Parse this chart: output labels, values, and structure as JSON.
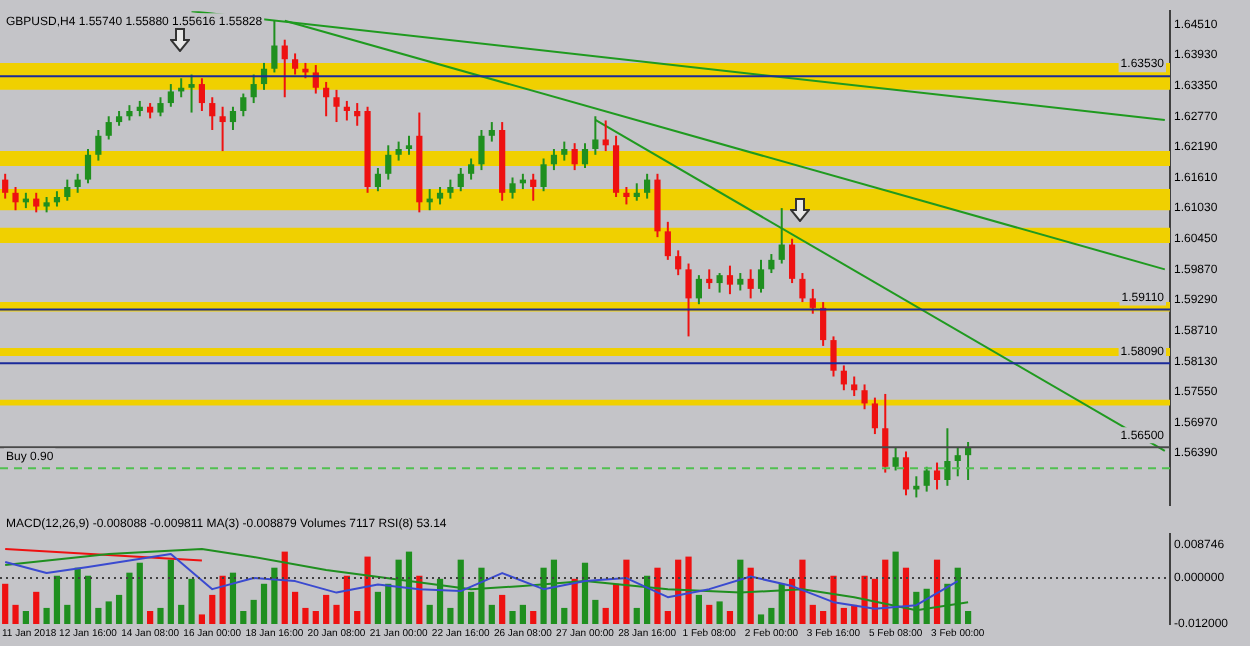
{
  "chart_data": [
    {
      "type": "candlestick",
      "title": "GBPUSD,H4 1.55740 1.55880 1.55616 1.55828",
      "tick_labels": "y",
      "categories": [
        null,
        null,
        null,
        null,
        null,
        null,
        null,
        null,
        null,
        null,
        null,
        null,
        null,
        null,
        null,
        null,
        null,
        null,
        null,
        null,
        null,
        null,
        null,
        null,
        null,
        null,
        null,
        null,
        null,
        null,
        null,
        null,
        null,
        null,
        null,
        null,
        null,
        null,
        null,
        null,
        null,
        null,
        null,
        null,
        null,
        null,
        null,
        null,
        null,
        null,
        null,
        null,
        null,
        null,
        null,
        null,
        null,
        null,
        null,
        null,
        null,
        null,
        null,
        null,
        null,
        null,
        null,
        null,
        null,
        null,
        null,
        null,
        null,
        null,
        null,
        null,
        null,
        null,
        null,
        null,
        null,
        null,
        null,
        null,
        null,
        null,
        null,
        null,
        null,
        null,
        null,
        null,
        null,
        null,
        null,
        null,
        null,
        null,
        null,
        null,
        null,
        null,
        null,
        null,
        null,
        null,
        null,
        null,
        null,
        null,
        null,
        null,
        null
      ],
      "ohlc": [
        [
          1.6157,
          1.6168,
          1.6121,
          1.6132
        ],
        [
          1.6132,
          1.6143,
          1.6099,
          1.6114
        ],
        [
          1.6114,
          1.6132,
          1.6103,
          1.6121
        ],
        [
          1.6121,
          1.6132,
          1.6095,
          1.6106
        ],
        [
          1.6106,
          1.6124,
          1.6095,
          1.6114
        ],
        [
          1.6114,
          1.6135,
          1.6106,
          1.6124
        ],
        [
          1.6124,
          1.6157,
          1.6117,
          1.6143
        ],
        [
          1.6143,
          1.6168,
          1.6132,
          1.6157
        ],
        [
          1.6157,
          1.6215,
          1.615,
          1.6204
        ],
        [
          1.6204,
          1.6251,
          1.6193,
          1.624
        ],
        [
          1.624,
          1.6277,
          1.6233,
          1.6266
        ],
        [
          1.6266,
          1.6287,
          1.6259,
          1.6277
        ],
        [
          1.6277,
          1.6298,
          1.6269,
          1.6287
        ],
        [
          1.6287,
          1.6306,
          1.6277,
          1.6295
        ],
        [
          1.6295,
          1.6302,
          1.6273,
          1.6284
        ],
        [
          1.6284,
          1.6313,
          1.6277,
          1.6302
        ],
        [
          1.6302,
          1.6338,
          1.6295,
          1.6324
        ],
        [
          1.6324,
          1.6349,
          1.6313,
          1.6331
        ],
        [
          1.6331,
          1.6356,
          1.6284,
          1.6338
        ],
        [
          1.6338,
          1.6349,
          1.6287,
          1.6302
        ],
        [
          1.6302,
          1.6313,
          1.6251,
          1.6277
        ],
        [
          1.6277,
          1.6295,
          1.6211,
          1.6266
        ],
        [
          1.6266,
          1.6295,
          1.6251,
          1.6287
        ],
        [
          1.6287,
          1.632,
          1.6277,
          1.6313
        ],
        [
          1.6313,
          1.6356,
          1.6302,
          1.6338
        ],
        [
          1.6338,
          1.6378,
          1.6327,
          1.6367
        ],
        [
          1.6367,
          1.6458,
          1.636,
          1.6411
        ],
        [
          1.6411,
          1.6422,
          1.6313,
          1.6385
        ],
        [
          1.6385,
          1.6396,
          1.6356,
          1.6367
        ],
        [
          1.6367,
          1.6378,
          1.6349,
          1.636
        ],
        [
          1.636,
          1.6374,
          1.632,
          1.6331
        ],
        [
          1.6331,
          1.6342,
          1.6277,
          1.6313
        ],
        [
          1.6313,
          1.6327,
          1.6266,
          1.6295
        ],
        [
          1.6295,
          1.6306,
          1.6269,
          1.6287
        ],
        [
          1.6287,
          1.6302,
          1.6259,
          1.6277
        ],
        [
          1.6287,
          1.6295,
          1.6132,
          1.6143
        ],
        [
          1.6143,
          1.6179,
          1.6135,
          1.6168
        ],
        [
          1.6168,
          1.6222,
          1.6157,
          1.6204
        ],
        [
          1.6204,
          1.6229,
          1.6193,
          1.6215
        ],
        [
          1.6215,
          1.624,
          1.6204,
          1.6222
        ],
        [
          1.624,
          1.6284,
          1.6095,
          1.6114
        ],
        [
          1.6114,
          1.6139,
          1.6099,
          1.6121
        ],
        [
          1.6121,
          1.6143,
          1.611,
          1.6132
        ],
        [
          1.6132,
          1.6157,
          1.6121,
          1.6143
        ],
        [
          1.6143,
          1.6179,
          1.6135,
          1.6168
        ],
        [
          1.6168,
          1.6197,
          1.6157,
          1.6186
        ],
        [
          1.6186,
          1.6251,
          1.6175,
          1.624
        ],
        [
          1.624,
          1.6266,
          1.6229,
          1.6251
        ],
        [
          1.6251,
          1.6266,
          1.6117,
          1.6132
        ],
        [
          1.6132,
          1.6161,
          1.6121,
          1.615
        ],
        [
          1.615,
          1.6168,
          1.6139,
          1.6157
        ],
        [
          1.6157,
          1.6168,
          1.6117,
          1.6143
        ],
        [
          1.6143,
          1.6197,
          1.6135,
          1.6186
        ],
        [
          1.6186,
          1.6215,
          1.6175,
          1.6204
        ],
        [
          1.6204,
          1.6229,
          1.6193,
          1.6215
        ],
        [
          1.6215,
          1.6226,
          1.6175,
          1.6186
        ],
        [
          1.6186,
          1.6226,
          1.6179,
          1.6215
        ],
        [
          1.6215,
          1.6277,
          1.6204,
          1.6233
        ],
        [
          1.6233,
          1.6269,
          1.6211,
          1.6222
        ],
        [
          1.6222,
          1.624,
          1.6124,
          1.6132
        ],
        [
          1.6132,
          1.6143,
          1.611,
          1.6124
        ],
        [
          1.6124,
          1.615,
          1.6117,
          1.6132
        ],
        [
          1.6132,
          1.6168,
          1.6121,
          1.6157
        ],
        [
          1.6157,
          1.6168,
          1.6048,
          1.6059
        ],
        [
          1.6059,
          1.6077,
          1.6005,
          1.6012
        ],
        [
          1.6012,
          1.6023,
          1.5976,
          1.5987
        ],
        [
          1.5987,
          1.5998,
          1.586,
          1.5932
        ],
        [
          1.5932,
          1.5976,
          1.5921,
          1.5969
        ],
        [
          1.5969,
          1.5987,
          1.595,
          1.5961
        ],
        [
          1.5961,
          1.598,
          1.5943,
          1.5976
        ],
        [
          1.5976,
          1.5994,
          1.594,
          1.5958
        ],
        [
          1.5958,
          1.598,
          1.5947,
          1.5969
        ],
        [
          1.5969,
          1.5987,
          1.5932,
          1.595
        ],
        [
          1.595,
          1.6005,
          1.5943,
          1.5987
        ],
        [
          1.5987,
          1.6016,
          1.598,
          1.6005
        ],
        [
          1.6005,
          1.6103,
          1.5998,
          1.6034
        ],
        [
          1.6034,
          1.6045,
          1.5961,
          1.5969
        ],
        [
          1.5969,
          1.598,
          1.5925,
          1.5932
        ],
        [
          1.5932,
          1.595,
          1.5903,
          1.5914
        ],
        [
          1.5914,
          1.5925,
          1.5842,
          1.5853
        ],
        [
          1.5853,
          1.586,
          1.5784,
          1.5795
        ],
        [
          1.5795,
          1.5805,
          1.5758,
          1.5769
        ],
        [
          1.5769,
          1.5784,
          1.5747,
          1.5758
        ],
        [
          1.5758,
          1.5769,
          1.5722,
          1.5733
        ],
        [
          1.5733,
          1.5744,
          1.5675,
          1.5686
        ],
        [
          1.5686,
          1.5751,
          1.5602,
          1.5613
        ],
        [
          1.5613,
          1.565,
          1.5606,
          1.5631
        ],
        [
          1.5631,
          1.5642,
          1.5559,
          1.557
        ],
        [
          1.557,
          1.5595,
          1.5555,
          1.5577
        ],
        [
          1.5577,
          1.5613,
          1.5566,
          1.5606
        ],
        [
          1.5606,
          1.5621,
          1.557,
          1.5588
        ],
        [
          1.5588,
          1.5686,
          1.5577,
          1.5624
        ],
        [
          1.5624,
          1.565,
          1.5595,
          1.5635
        ],
        [
          1.5635,
          1.566,
          1.5588,
          1.565
        ],
        null,
        null,
        null,
        null,
        null,
        null,
        null,
        null,
        null,
        null,
        null,
        null,
        null,
        null,
        null,
        null,
        null,
        null,
        null
      ],
      "colors": [
        "#ee1111",
        "#ee1111",
        "#1f8f1f",
        "#ee1111",
        "#1f8f1f",
        "#1f8f1f",
        "#1f8f1f",
        "#1f8f1f",
        "#1f8f1f",
        "#1f8f1f",
        "#1f8f1f",
        "#1f8f1f",
        "#1f8f1f",
        "#1f8f1f",
        "#ee1111",
        "#1f8f1f",
        "#1f8f1f",
        "#1f8f1f",
        "#1f8f1f",
        "#ee1111",
        "#ee1111",
        "#ee1111",
        "#1f8f1f",
        "#1f8f1f",
        "#1f8f1f",
        "#1f8f1f",
        "#1f8f1f",
        "#ee1111",
        "#ee1111",
        "#ee1111",
        "#ee1111",
        "#ee1111",
        "#ee1111",
        "#ee1111",
        "#ee1111",
        "#ee1111",
        "#1f8f1f",
        "#1f8f1f",
        "#1f8f1f",
        "#1f8f1f",
        "#ee1111",
        "#1f8f1f",
        "#1f8f1f",
        "#1f8f1f",
        "#1f8f1f",
        "#1f8f1f",
        "#1f8f1f",
        "#1f8f1f",
        "#ee1111",
        "#1f8f1f",
        "#1f8f1f",
        "#ee1111",
        "#1f8f1f",
        "#1f8f1f",
        "#1f8f1f",
        "#ee1111",
        "#1f8f1f",
        "#1f8f1f",
        "#ee1111",
        "#ee1111",
        "#ee1111",
        "#1f8f1f",
        "#1f8f1f",
        "#ee1111",
        "#ee1111",
        "#ee1111",
        "#ee1111",
        "#1f8f1f",
        "#ee1111",
        "#1f8f1f",
        "#ee1111",
        "#1f8f1f",
        "#ee1111",
        "#1f8f1f",
        "#1f8f1f",
        "#1f8f1f",
        "#ee1111",
        "#ee1111",
        "#ee1111",
        "#ee1111",
        "#ee1111",
        "#ee1111",
        "#ee1111",
        "#ee1111",
        "#ee1111",
        "#ee1111",
        "#1f8f1f",
        "#ee1111",
        "#1f8f1f",
        "#1f8f1f",
        "#ee1111",
        "#1f8f1f",
        "#1f8f1f",
        "#1f8f1f",
        null,
        null,
        null,
        null,
        null,
        null,
        null,
        null,
        null,
        null,
        null,
        null,
        null,
        null,
        null,
        null,
        null,
        null,
        null
      ],
      "ylim": [
        1.5541,
        1.6476
      ],
      "yticks": [
        {
          "value": 1.6451,
          "label": "1.64510"
        },
        {
          "value": 1.6393,
          "label": "1.63930"
        },
        {
          "value": 1.6335,
          "label": "1.63350"
        },
        {
          "value": 1.6277,
          "label": "1.62770"
        },
        {
          "value": 1.6219,
          "label": "1.62190"
        },
        {
          "value": 1.6161,
          "label": "1.61610"
        },
        {
          "value": 1.6103,
          "label": "1.61030"
        },
        {
          "value": 1.6045,
          "label": "1.60450"
        },
        {
          "value": 1.5987,
          "label": "1.59870"
        },
        {
          "value": 1.5929,
          "label": "1.59290"
        },
        {
          "value": 1.5871,
          "label": "1.58710"
        },
        {
          "value": 1.5813,
          "label": "1.58130"
        },
        {
          "value": 1.5755,
          "label": "1.57550"
        },
        {
          "value": 1.5697,
          "label": "1.56970"
        },
        {
          "value": 1.5639,
          "label": "1.56390"
        }
      ],
      "bands": [
        {
          "axis": "y",
          "from": 1.6327,
          "to": 1.6378,
          "color": "#f0d000"
        },
        {
          "axis": "y",
          "from": 1.6183,
          "to": 1.6211,
          "color": "#f0d000"
        },
        {
          "axis": "y",
          "from": 1.6099,
          "to": 1.6139,
          "color": "#f0d000"
        },
        {
          "axis": "y",
          "from": 1.6037,
          "to": 1.6066,
          "color": "#f0d000"
        },
        {
          "axis": "y",
          "from": 1.5907,
          "to": 1.5925,
          "color": "#f0d000"
        },
        {
          "axis": "y",
          "from": 1.5823,
          "to": 1.5838,
          "color": "#f0d000"
        },
        {
          "axis": "y",
          "from": 1.5729,
          "to": 1.574,
          "color": "#f0d000"
        }
      ],
      "ref_lines": [
        {
          "axis": "y",
          "value": 1.6353,
          "label": "1.63530",
          "color": "#1a2a9a"
        },
        {
          "axis": "y",
          "value": 1.5911,
          "label": "1.59110",
          "color": "#1a2a9a"
        },
        {
          "axis": "y",
          "value": 1.5809,
          "label": "1.58090",
          "color": "#1a2a9a"
        },
        {
          "axis": "y",
          "value": 1.565,
          "label": "1.56500",
          "color": "#4a4a4a"
        },
        {
          "axis": "y",
          "value": 1.561,
          "label": "Buy 0.90",
          "color": "#50c050",
          "line_style": "dashed"
        }
      ],
      "series": [
        {
          "type": "line",
          "color": "#1f9a1f",
          "values": [
            null,
            null,
            null,
            null,
            null,
            null,
            null,
            null,
            null,
            null,
            null,
            null,
            null,
            null,
            null,
            null,
            null,
            null,
            1.6476,
            null,
            null,
            null,
            null,
            null,
            null,
            null,
            null,
            null,
            null,
            null,
            null,
            null,
            null,
            null,
            null,
            null,
            null,
            null,
            null,
            null,
            null,
            null,
            null,
            null,
            null,
            null,
            null,
            null,
            null,
            null,
            null,
            null,
            null,
            null,
            null,
            null,
            null,
            null,
            null,
            null,
            null,
            null,
            null,
            null,
            null,
            null,
            null,
            null,
            null,
            null,
            null,
            null,
            null,
            null,
            null,
            null,
            null,
            null,
            null,
            null,
            null,
            null,
            null,
            null,
            null,
            null,
            null,
            null,
            null,
            null,
            null,
            null,
            null,
            null,
            null,
            null,
            null,
            null,
            null,
            null,
            null,
            null,
            null,
            null,
            null,
            null,
            null,
            null,
            null,
            null,
            null,
            null,
            1.627
          ]
        },
        {
          "type": "line",
          "color": "#1f9a1f",
          "values": [
            null,
            null,
            null,
            null,
            null,
            null,
            null,
            null,
            null,
            null,
            null,
            null,
            null,
            null,
            null,
            null,
            null,
            null,
            null,
            null,
            null,
            null,
            null,
            null,
            null,
            null,
            null,
            1.6458,
            null,
            null,
            null,
            null,
            null,
            null,
            null,
            null,
            null,
            null,
            null,
            null,
            null,
            null,
            null,
            null,
            null,
            null,
            null,
            null,
            null,
            null,
            null,
            null,
            null,
            null,
            null,
            null,
            null,
            null,
            null,
            null,
            null,
            null,
            null,
            null,
            null,
            null,
            null,
            null,
            null,
            null,
            null,
            null,
            null,
            null,
            null,
            null,
            null,
            null,
            null,
            null,
            null,
            null,
            null,
            null,
            null,
            null,
            null,
            null,
            null,
            null,
            null,
            null,
            null,
            null,
            null,
            null,
            null,
            null,
            null,
            null,
            null,
            null,
            null,
            null,
            null,
            null,
            null,
            null,
            null,
            null,
            null,
            null,
            1.5987
          ]
        },
        {
          "type": "line",
          "color": "#1f9a1f",
          "values": [
            null,
            null,
            null,
            null,
            null,
            null,
            null,
            null,
            null,
            null,
            null,
            null,
            null,
            null,
            null,
            null,
            null,
            null,
            null,
            null,
            null,
            null,
            null,
            null,
            null,
            null,
            null,
            null,
            null,
            null,
            null,
            null,
            null,
            null,
            null,
            null,
            null,
            null,
            null,
            null,
            null,
            null,
            null,
            null,
            null,
            null,
            null,
            null,
            null,
            null,
            null,
            null,
            null,
            null,
            null,
            null,
            null,
            1.627,
            null,
            null,
            null,
            null,
            null,
            null,
            null,
            null,
            null,
            null,
            null,
            null,
            null,
            null,
            null,
            null,
            null,
            null,
            null,
            null,
            null,
            null,
            null,
            null,
            null,
            null,
            null,
            null,
            null,
            null,
            null,
            null,
            null,
            null,
            null,
            null,
            null,
            null,
            null,
            null,
            null,
            null,
            null,
            null,
            null,
            null,
            null,
            null,
            null,
            null,
            null,
            null,
            null,
            null,
            1.5643
          ]
        }
      ]
    },
    {
      "type": "bar",
      "title": "MACD(12,26,9) -0.008088 -0.009811 MA(3) -0.008879 Volumes 7117 RSI(8) 53.14",
      "categories": [
        null,
        null,
        "11 Jan 2018",
        null,
        null,
        null,
        null,
        null,
        "12 Jan 16:00",
        null,
        null,
        null,
        null,
        null,
        "14 Jan 08:00",
        null,
        null,
        null,
        null,
        null,
        "16 Jan 00:00",
        null,
        null,
        null,
        null,
        null,
        "18 Jan 16:00",
        null,
        null,
        null,
        null,
        null,
        "20 Jan 08:00",
        null,
        null,
        null,
        null,
        null,
        "21 Jan 00:00",
        null,
        null,
        null,
        null,
        null,
        "22 Jan 16:00",
        null,
        null,
        null,
        null,
        null,
        "26 Jan 08:00",
        null,
        null,
        null,
        null,
        null,
        "27 Jan 00:00",
        null,
        null,
        null,
        null,
        null,
        "28 Jan 16:00",
        null,
        null,
        null,
        null,
        null,
        "1 Feb 08:00",
        null,
        null,
        null,
        null,
        null,
        "2 Feb 00:00",
        null,
        null,
        null,
        null,
        null,
        "3 Feb 16:00",
        null,
        null,
        null,
        null,
        null,
        "5 Feb 08:00",
        null,
        null,
        null,
        null,
        null,
        "3 Feb 00:00",
        null,
        null,
        null,
        null,
        null,
        null,
        null,
        null,
        null,
        null,
        null,
        null,
        null,
        null,
        null,
        null,
        null,
        null,
        null,
        null
      ],
      "values": [
        0.0105,
        0.005,
        0.0034,
        0.0084,
        0.0042,
        0.0126,
        0.005,
        0.0147,
        0.0126,
        0.0042,
        0.0059,
        0.0076,
        0.0134,
        0.016,
        0.0034,
        0.0042,
        0.0168,
        0.005,
        0.0118,
        0.0025,
        0.0076,
        0.0126,
        0.0134,
        0.0034,
        0.0063,
        0.0105,
        0.0147,
        0.0189,
        0.0084,
        0.0042,
        0.0034,
        0.0076,
        0.005,
        0.0126,
        0.0034,
        0.0176,
        0.0084,
        0.0105,
        0.0168,
        0.0189,
        0.0126,
        0.005,
        0.0118,
        0.0042,
        0.0168,
        0.0084,
        0.0147,
        0.005,
        0.0076,
        0.0034,
        0.005,
        0.0034,
        0.0147,
        0.0168,
        0.0042,
        0.0118,
        0.016,
        0.0063,
        0.0042,
        0.0105,
        0.0168,
        0.0042,
        0.0126,
        0.0147,
        0.0034,
        0.0168,
        0.0176,
        0.0076,
        0.005,
        0.0059,
        0.0034,
        0.0168,
        0.0147,
        0.0025,
        0.0042,
        0.0105,
        0.0118,
        0.0168,
        0.005,
        0.0034,
        0.0126,
        0.0042,
        0.005,
        0.0126,
        0.0118,
        0.0168,
        0.0189,
        0.0147,
        0.0084,
        0.0092,
        0.0168,
        0.0105,
        0.0147,
        0.0034,
        null,
        null,
        null,
        null,
        null,
        null,
        null,
        null,
        null,
        null,
        null,
        null,
        null,
        null,
        null,
        null,
        null,
        null,
        null
      ],
      "base": [
        -0.012,
        -0.012,
        -0.012,
        -0.012,
        -0.012,
        -0.012,
        -0.012,
        -0.012,
        -0.012,
        -0.012,
        -0.012,
        -0.012,
        -0.012,
        -0.012,
        -0.012,
        -0.012,
        -0.012,
        -0.012,
        -0.012,
        -0.012,
        -0.012,
        -0.012,
        -0.012,
        -0.012,
        -0.012,
        -0.012,
        -0.012,
        -0.012,
        -0.012,
        -0.012,
        -0.012,
        -0.012,
        -0.012,
        -0.012,
        -0.012,
        -0.012,
        -0.012,
        -0.012,
        -0.012,
        -0.012,
        -0.012,
        -0.012,
        -0.012,
        -0.012,
        -0.012,
        -0.012,
        -0.012,
        -0.012,
        -0.012,
        -0.012,
        -0.012,
        -0.012,
        -0.012,
        -0.012,
        -0.012,
        -0.012,
        -0.012,
        -0.012,
        -0.012,
        -0.012,
        -0.012,
        -0.012,
        -0.012,
        -0.012,
        -0.012,
        -0.012,
        -0.012,
        -0.012,
        -0.012,
        -0.012,
        -0.012,
        -0.012,
        -0.012,
        -0.012,
        -0.012,
        -0.012,
        -0.012,
        -0.012,
        -0.012,
        -0.012,
        -0.012,
        -0.012,
        -0.012,
        -0.012,
        -0.012,
        -0.012,
        -0.012,
        -0.012,
        -0.012,
        -0.012,
        -0.012,
        -0.012,
        -0.012,
        -0.012,
        null,
        null,
        null,
        null,
        null,
        null,
        null,
        null,
        null,
        null,
        null,
        null,
        null,
        null,
        null,
        null,
        null,
        null,
        null
      ],
      "colors": [
        "#ee1111",
        "#ee1111",
        "#1f8f1f",
        "#ee1111",
        "#1f8f1f",
        "#1f8f1f",
        "#1f8f1f",
        "#1f8f1f",
        "#1f8f1f",
        "#1f8f1f",
        "#1f8f1f",
        "#1f8f1f",
        "#1f8f1f",
        "#1f8f1f",
        "#ee1111",
        "#1f8f1f",
        "#1f8f1f",
        "#1f8f1f",
        "#1f8f1f",
        "#ee1111",
        "#ee1111",
        "#ee1111",
        "#1f8f1f",
        "#1f8f1f",
        "#1f8f1f",
        "#1f8f1f",
        "#1f8f1f",
        "#ee1111",
        "#ee1111",
        "#ee1111",
        "#ee1111",
        "#ee1111",
        "#ee1111",
        "#ee1111",
        "#ee1111",
        "#ee1111",
        "#1f8f1f",
        "#1f8f1f",
        "#1f8f1f",
        "#1f8f1f",
        "#ee1111",
        "#1f8f1f",
        "#1f8f1f",
        "#1f8f1f",
        "#1f8f1f",
        "#1f8f1f",
        "#1f8f1f",
        "#1f8f1f",
        "#ee1111",
        "#1f8f1f",
        "#1f8f1f",
        "#ee1111",
        "#1f8f1f",
        "#1f8f1f",
        "#1f8f1f",
        "#ee1111",
        "#1f8f1f",
        "#1f8f1f",
        "#ee1111",
        "#ee1111",
        "#ee1111",
        "#1f8f1f",
        "#1f8f1f",
        "#ee1111",
        "#ee1111",
        "#ee1111",
        "#ee1111",
        "#1f8f1f",
        "#ee1111",
        "#1f8f1f",
        "#ee1111",
        "#1f8f1f",
        "#ee1111",
        "#1f8f1f",
        "#1f8f1f",
        "#1f8f1f",
        "#ee1111",
        "#ee1111",
        "#ee1111",
        "#ee1111",
        "#ee1111",
        "#ee1111",
        "#ee1111",
        "#ee1111",
        "#ee1111",
        "#ee1111",
        "#1f8f1f",
        "#ee1111",
        "#1f8f1f",
        "#1f8f1f",
        "#ee1111",
        "#1f8f1f",
        "#1f8f1f",
        "#1f8f1f",
        null,
        null,
        null,
        null,
        null,
        null,
        null,
        null,
        null,
        null,
        null,
        null,
        null,
        null,
        null,
        null,
        null,
        null,
        null
      ],
      "ylim": [
        -0.012,
        0.0115
      ],
      "yticks": [
        {
          "value": 0.008746,
          "label": "0.008746"
        },
        {
          "value": 0,
          "label": "0.000000"
        },
        {
          "value": -0.012,
          "label": "-0.012000"
        }
      ],
      "ref_lines": [
        {
          "axis": "y",
          "value": 0,
          "color": "#404040",
          "line_style": "dotted"
        }
      ],
      "series": [
        {
          "type": "line",
          "color": "#3a4ad0",
          "values": [
            0.0042,
            null,
            null,
            null,
            0.0013,
            null,
            null,
            null,
            0.0029,
            null,
            null,
            null,
            0.0046,
            null,
            null,
            null,
            0.0063,
            null,
            null,
            null,
            -0.0029,
            null,
            null,
            null,
            0,
            null,
            null,
            null,
            -0.0008,
            null,
            null,
            null,
            -0.0038,
            null,
            null,
            null,
            -0.0017,
            null,
            null,
            null,
            -0.0029,
            null,
            null,
            null,
            -0.0034,
            null,
            null,
            null,
            0.0013,
            null,
            null,
            null,
            -0.0029,
            null,
            null,
            null,
            -0.0008,
            null,
            null,
            null,
            0,
            null,
            null,
            null,
            -0.005,
            null,
            null,
            null,
            -0.0029,
            null,
            null,
            null,
            0.0004,
            null,
            null,
            null,
            -0.0021,
            null,
            null,
            null,
            -0.0063,
            null,
            null,
            null,
            -0.008,
            null,
            null,
            null,
            -0.0071,
            null,
            null,
            null,
            -0.0008,
            null,
            null,
            null,
            null,
            null,
            null,
            null,
            null,
            null,
            null,
            null,
            null,
            null,
            null,
            null,
            null,
            null,
            null,
            null,
            null
          ]
        },
        {
          "type": "line",
          "color": "#1f8f1f",
          "values": [
            0.0034,
            null,
            null,
            null,
            null,
            null,
            null,
            null,
            null,
            null,
            0.0063,
            null,
            null,
            null,
            null,
            null,
            null,
            null,
            null,
            0.0076,
            null,
            null,
            null,
            null,
            0.0055,
            null,
            null,
            null,
            null,
            null,
            null,
            0.0021,
            null,
            null,
            null,
            null,
            null,
            null,
            null,
            -0.0008,
            null,
            null,
            null,
            null,
            null,
            -0.0029,
            null,
            null,
            null,
            null,
            -0.0021,
            null,
            null,
            null,
            null,
            null,
            -0.0008,
            null,
            null,
            null,
            null,
            null,
            null,
            null,
            -0.0029,
            null,
            null,
            null,
            null,
            null,
            null,
            -0.0038,
            null,
            null,
            null,
            null,
            null,
            -0.0029,
            null,
            null,
            null,
            null,
            -0.005,
            null,
            null,
            null,
            null,
            null,
            -0.0084,
            null,
            null,
            null,
            null,
            -0.0063,
            null,
            null,
            null,
            null,
            null,
            null,
            null,
            null,
            null,
            null,
            null,
            null,
            null,
            null,
            null,
            null,
            null,
            null,
            null
          ]
        },
        {
          "type": "line",
          "color": "#ee1111",
          "values": [
            0.0076,
            null,
            null,
            null,
            null,
            null,
            null,
            null,
            null,
            null,
            null,
            null,
            null,
            null,
            null,
            null,
            null,
            null,
            null,
            0.0046,
            null,
            null,
            null,
            null,
            null,
            null,
            null,
            null,
            null,
            null,
            null,
            null,
            null,
            null,
            null,
            null,
            null,
            null,
            null,
            null,
            null,
            null,
            null,
            null,
            null,
            null,
            null,
            null,
            null,
            null,
            null,
            null,
            null,
            null,
            null,
            null,
            null,
            null,
            null,
            null,
            null,
            null,
            null,
            null,
            null,
            null,
            null,
            null,
            null,
            null,
            null,
            null,
            null,
            null,
            null,
            null,
            null,
            null,
            null,
            null,
            null,
            null,
            null,
            null,
            null,
            null,
            null,
            null,
            null,
            null,
            null,
            null,
            null,
            null,
            null,
            null,
            null,
            null,
            null,
            null,
            null,
            null,
            null,
            null,
            null,
            null,
            null,
            null,
            null,
            null,
            null,
            null,
            null
          ]
        }
      ]
    }
  ]
}
